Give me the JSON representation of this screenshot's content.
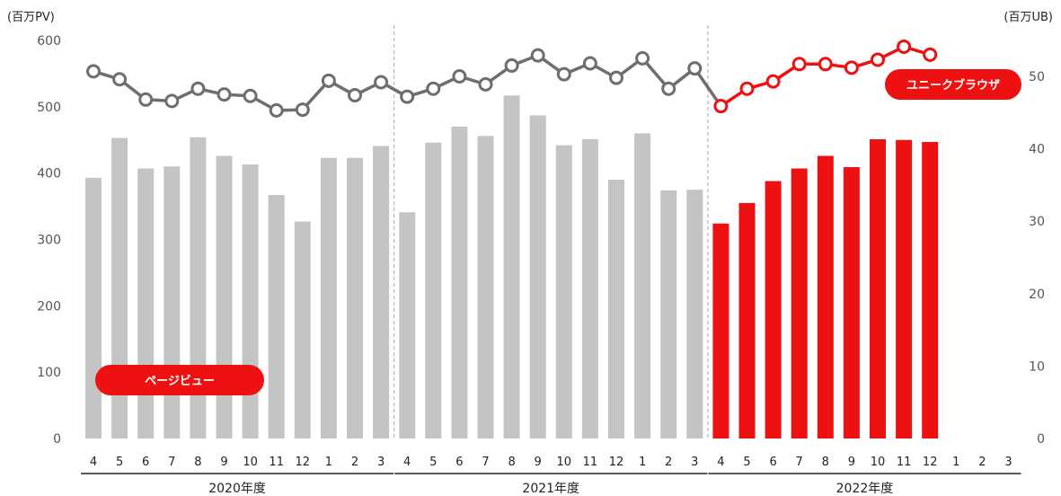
{
  "chart_data": {
    "type": "bar+line",
    "left_axis_unit": "(百万PV)",
    "right_axis_unit": "(百万UB)",
    "left_ylim": [
      0,
      600
    ],
    "left_ticks": [
      "0",
      "100",
      "200",
      "300",
      "400",
      "500",
      "600"
    ],
    "right_ylim": [
      0,
      55
    ],
    "right_ticks": [
      "0",
      "10",
      "20",
      "30",
      "40",
      "50"
    ],
    "categories": [
      "4",
      "5",
      "6",
      "7",
      "8",
      "9",
      "10",
      "11",
      "12",
      "1",
      "2",
      "3",
      "4",
      "5",
      "6",
      "7",
      "8",
      "9",
      "10",
      "11",
      "12",
      "1",
      "2",
      "3",
      "4",
      "5",
      "6",
      "7",
      "8",
      "9",
      "10",
      "11",
      "12",
      "1",
      "2",
      "3"
    ],
    "fiscal_years": [
      {
        "label": "2020年度",
        "start": 0,
        "end": 11
      },
      {
        "label": "2021年度",
        "start": 12,
        "end": 23
      },
      {
        "label": "2022年度",
        "start": 24,
        "end": 35
      }
    ],
    "series": [
      {
        "name": "ページビュー",
        "kind": "bar",
        "values": [
          393,
          453,
          407,
          410,
          454,
          426,
          413,
          367,
          327,
          423,
          423,
          441,
          341,
          446,
          470,
          456,
          517,
          487,
          442,
          451,
          390,
          460,
          374,
          375,
          324,
          355,
          388,
          407,
          426,
          409,
          451,
          450,
          447,
          null,
          null,
          null
        ]
      },
      {
        "name": "ユニークブラウザ",
        "kind": "line",
        "values": [
          50.7,
          49.6,
          46.8,
          46.6,
          48.3,
          47.5,
          47.3,
          45.3,
          45.4,
          49.4,
          47.4,
          49.2,
          47.2,
          48.3,
          50.0,
          48.9,
          51.5,
          52.9,
          50.3,
          51.8,
          49.8,
          52.5,
          48.3,
          51.1,
          45.9,
          48.3,
          49.3,
          51.7,
          51.7,
          51.2,
          52.3,
          54.1,
          53.0,
          null,
          null,
          null
        ]
      }
    ],
    "colors": {
      "bar_past": "#c4c4c4",
      "bar_current": "#ee1111",
      "line_past": "#6e6e6e",
      "line_current": "#ee1111",
      "badge": "#ee1111",
      "divider": "#aaaaaa"
    },
    "grid": false
  }
}
